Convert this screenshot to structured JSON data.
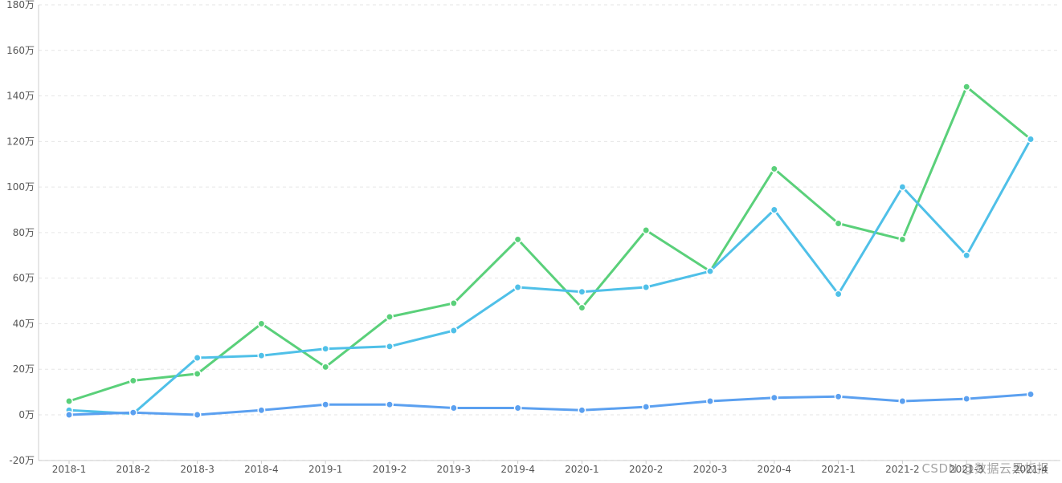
{
  "chart_data": {
    "type": "line",
    "categories": [
      "2018-1",
      "2018-2",
      "2018-3",
      "2018-4",
      "2019-1",
      "2019-2",
      "2019-3",
      "2019-4",
      "2020-1",
      "2020-2",
      "2020-3",
      "2020-4",
      "2021-1",
      "2021-2",
      "2021-3",
      "2021-4"
    ],
    "y_ticks": [
      "180万",
      "160万",
      "140万",
      "120万",
      "100万",
      "80万",
      "60万",
      "40万",
      "20万",
      "0万",
      "-20万"
    ],
    "ylim": [
      -20,
      180
    ],
    "unit": "万",
    "grid": true,
    "series": [
      {
        "color": "#5ad07a",
        "values": [
          6,
          15,
          18,
          40,
          21,
          43,
          49,
          77,
          47,
          81,
          63,
          108,
          84,
          77,
          144,
          121
        ]
      },
      {
        "color": "#4fc0e8",
        "values": [
          2,
          0.5,
          25,
          26,
          29,
          30,
          37,
          56,
          54,
          56,
          63,
          90,
          53,
          100,
          70,
          121
        ]
      },
      {
        "color": "#5ba0f0",
        "values": [
          0,
          1,
          0,
          2,
          4.5,
          4.5,
          3,
          3,
          2,
          3.5,
          6,
          7.5,
          8,
          6,
          7,
          9
        ]
      }
    ]
  },
  "watermark": "CSDN @数据云黑板报"
}
